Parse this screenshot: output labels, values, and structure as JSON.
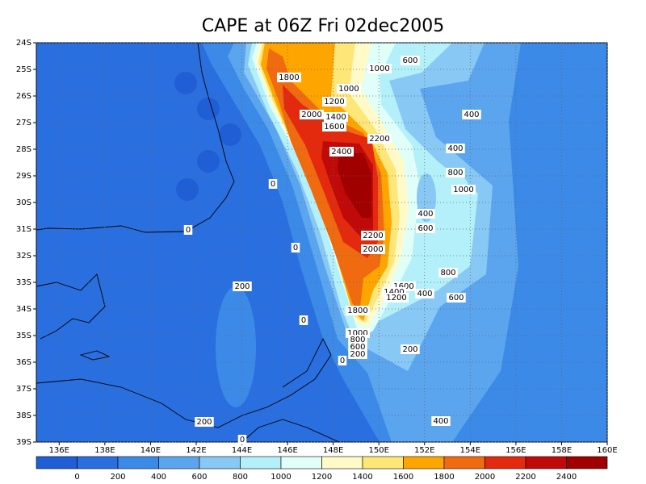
{
  "map": {
    "title": "CAPE at 06Z Fri 02dec2005",
    "xlim": [
      135,
      160
    ],
    "ylim": [
      -24,
      -39
    ],
    "xticks": [
      {
        "value": 136,
        "label": "136E"
      },
      {
        "value": 138,
        "label": "138E"
      },
      {
        "value": 140,
        "label": "140E"
      },
      {
        "value": 142,
        "label": "142E"
      },
      {
        "value": 144,
        "label": "144E"
      },
      {
        "value": 146,
        "label": "146E"
      },
      {
        "value": 148,
        "label": "148E"
      },
      {
        "value": 150,
        "label": "150E"
      },
      {
        "value": 152,
        "label": "152E"
      },
      {
        "value": 154,
        "label": "154E"
      },
      {
        "value": 156,
        "label": "156E"
      },
      {
        "value": 158,
        "label": "158E"
      },
      {
        "value": 160,
        "label": "160E"
      }
    ],
    "yticks": [
      {
        "value": -24,
        "label": "24S"
      },
      {
        "value": -25,
        "label": "25S"
      },
      {
        "value": -26,
        "label": "26S"
      },
      {
        "value": -27,
        "label": "27S"
      },
      {
        "value": -28,
        "label": "28S"
      },
      {
        "value": -29,
        "label": "29S"
      },
      {
        "value": -30,
        "label": "30S"
      },
      {
        "value": -31,
        "label": "31S"
      },
      {
        "value": -32,
        "label": "32S"
      },
      {
        "value": -33,
        "label": "33S"
      },
      {
        "value": -34,
        "label": "34S"
      },
      {
        "value": -35,
        "label": "35S"
      },
      {
        "value": -36,
        "label": "36S"
      },
      {
        "value": -37,
        "label": "37S"
      },
      {
        "value": -38,
        "label": "38S"
      },
      {
        "value": -39,
        "label": "39S"
      }
    ],
    "grid": true,
    "colorbar": {
      "colors": [
        "#1f5ed4",
        "#2a6fe0",
        "#3c8ae8",
        "#5ba5ee",
        "#88c8f5",
        "#b4f0fa",
        "#dffff8",
        "#fffac8",
        "#ffe678",
        "#ffa500",
        "#f06a10",
        "#e42a0e",
        "#c00a0a",
        "#a00000"
      ],
      "labels": [
        0,
        200,
        400,
        600,
        800,
        1000,
        1200,
        1400,
        1600,
        1800,
        2000,
        2200,
        2400
      ]
    },
    "contour_labels": [
      1000,
      600,
      1800,
      1000,
      1200,
      400,
      2000,
      1400,
      1600,
      2200,
      400,
      2400,
      800,
      0,
      1000,
      400,
      600,
      0,
      2200,
      2000,
      0,
      800,
      1600,
      1400,
      1200,
      400,
      200,
      600,
      1800,
      0,
      1000,
      800,
      600,
      200,
      200,
      0,
      400,
      200,
      0
    ]
  }
}
